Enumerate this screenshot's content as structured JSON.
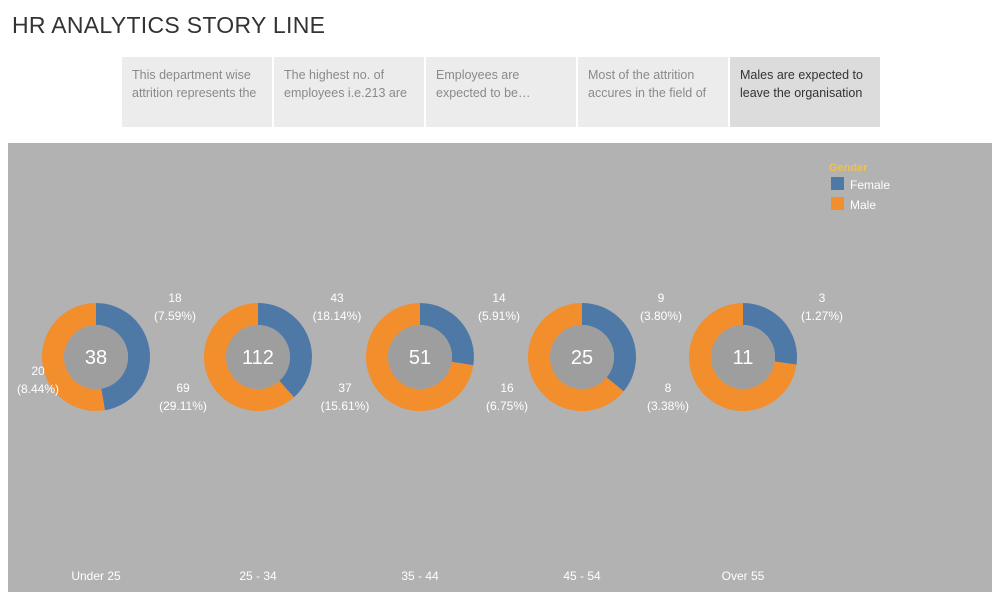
{
  "page": {
    "title": "HR ANALYTICS STORY LINE"
  },
  "story_points": [
    {
      "text": "This department wise attrition represents the"
    },
    {
      "text": "The highest no. of employees i.e.213 are"
    },
    {
      "text": "Employees are expected to be satisfied"
    },
    {
      "text": "Most of the attrition accures in the field of"
    },
    {
      "text": "Males are expected to leave the organisation"
    }
  ],
  "active_story_index": 4,
  "colors": {
    "panel_bg": "#b2b2b2",
    "female": "#4e79a7",
    "male": "#f28e2b",
    "center": "#9e9e9e",
    "legend_title": "#f0c24b"
  },
  "chart_data": {
    "type": "pie",
    "variant": "donut",
    "categories": [
      "Under 25",
      "25 - 34",
      "35 - 44",
      "45 - 54",
      "Over 55"
    ],
    "totals": [
      38,
      112,
      51,
      25,
      11
    ],
    "series": [
      {
        "name": "Female",
        "values": [
          18,
          43,
          14,
          9,
          3
        ],
        "percent_labels": [
          "(7.59%)",
          "(18.14%)",
          "(5.91%)",
          "(3.80%)",
          "(1.27%)"
        ]
      },
      {
        "name": "Male",
        "values": [
          20,
          69,
          37,
          16,
          8
        ],
        "percent_labels": [
          "(8.44%)",
          "(29.11%)",
          "(15.61%)",
          "(6.75%)",
          "(3.38%)"
        ]
      }
    ],
    "legend": {
      "title": "Gender",
      "placement": "top-right"
    }
  }
}
